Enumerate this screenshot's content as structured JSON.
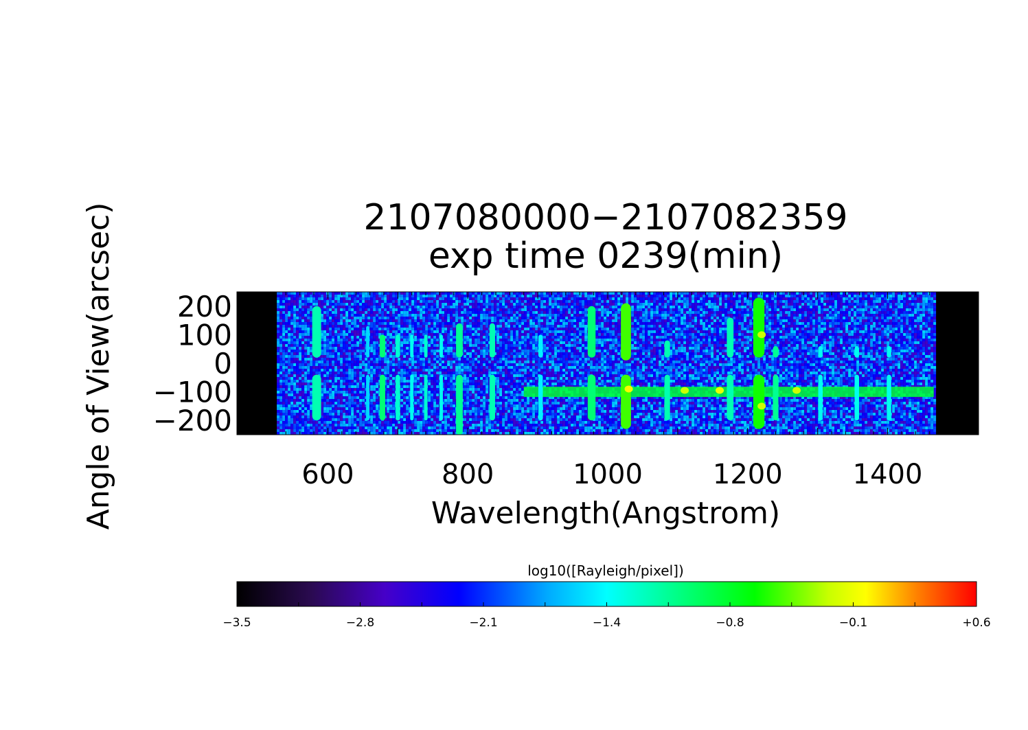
{
  "chart_data": {
    "type": "heatmap",
    "title_lines": [
      "2107080000−2107082359",
      "exp time 0239(min)"
    ],
    "xlabel": "Wavelength(Angstrom)",
    "ylabel": "Angle of View(arcsec)",
    "xlim": [
      470,
      1530
    ],
    "ylim": [
      -250,
      250
    ],
    "detector_range": [
      527,
      1466
    ],
    "x_ticks": [
      600,
      800,
      1000,
      1200,
      1400
    ],
    "x_tick_labels": [
      "600",
      "800",
      "1000",
      "1200",
      "1400"
    ],
    "y_ticks": [
      200,
      100,
      0,
      -100,
      -200
    ],
    "y_tick_labels": [
      "200",
      "100",
      "0",
      "−100",
      "−200"
    ],
    "colorbar": {
      "label": "log10([Rayleigh/pixel])",
      "range": [
        -3.5,
        0.6
      ],
      "tick_values": [
        -3.5,
        -2.8,
        -2.1,
        -1.4,
        -0.8,
        -0.1,
        0.6
      ],
      "tick_labels": [
        "−3.5",
        "−2.8",
        "−2.1",
        "−1.4",
        "−0.8",
        "−0.1",
        "+0.6"
      ]
    },
    "background_level": -2.1,
    "emission_lines": [
      {
        "wavelength": 584,
        "peak": -1.2,
        "width": 8,
        "vertical_extent": [
          -200,
          200
        ],
        "gap": [
          -40,
          20
        ]
      },
      {
        "wavelength": 657,
        "peak": -1.6,
        "width": 3,
        "vertical_extent": [
          -200,
          130
        ],
        "gap": [
          -40,
          20
        ]
      },
      {
        "wavelength": 678,
        "peak": -1.0,
        "width": 5,
        "vertical_extent": [
          -200,
          100
        ],
        "gap": [
          -40,
          20
        ]
      },
      {
        "wavelength": 700,
        "peak": -1.3,
        "width": 4,
        "vertical_extent": [
          -200,
          100
        ],
        "gap": [
          -40,
          20
        ]
      },
      {
        "wavelength": 720,
        "peak": -1.4,
        "width": 3,
        "vertical_extent": [
          -200,
          100
        ],
        "gap": [
          -40,
          20
        ]
      },
      {
        "wavelength": 740,
        "peak": -1.3,
        "width": 3,
        "vertical_extent": [
          -200,
          100
        ],
        "gap": [
          -40,
          20
        ]
      },
      {
        "wavelength": 762,
        "peak": -1.4,
        "width": 3,
        "vertical_extent": [
          -200,
          100
        ],
        "gap": [
          -40,
          20
        ]
      },
      {
        "wavelength": 788,
        "peak": -1.1,
        "width": 6,
        "vertical_extent": [
          -250,
          140
        ],
        "gap": [
          -40,
          20
        ]
      },
      {
        "wavelength": 835,
        "peak": -1.2,
        "width": 5,
        "vertical_extent": [
          -200,
          140
        ],
        "gap": [
          -40,
          20
        ]
      },
      {
        "wavelength": 904,
        "peak": -1.5,
        "width": 4,
        "vertical_extent": [
          -200,
          100
        ],
        "gap": [
          -40,
          20
        ]
      },
      {
        "wavelength": 977,
        "peak": -1.0,
        "width": 7,
        "vertical_extent": [
          -200,
          200
        ],
        "gap": [
          -40,
          20
        ]
      },
      {
        "wavelength": 1026,
        "peak": -0.5,
        "width": 9,
        "vertical_extent": [
          -230,
          210
        ],
        "gap": [
          -40,
          10
        ]
      },
      {
        "wavelength": 1085,
        "peak": -1.2,
        "width": 5,
        "vertical_extent": [
          -200,
          80
        ],
        "gap": [
          -40,
          20
        ]
      },
      {
        "wavelength": 1175,
        "peak": -1.2,
        "width": 6,
        "vertical_extent": [
          -200,
          160
        ],
        "gap": [
          -40,
          20
        ]
      },
      {
        "wavelength": 1216,
        "peak": -0.6,
        "width": 10,
        "vertical_extent": [
          -230,
          230
        ],
        "gap": [
          -40,
          20
        ]
      },
      {
        "wavelength": 1240,
        "peak": -1.1,
        "width": 5,
        "vertical_extent": [
          -200,
          60
        ],
        "gap": [
          -40,
          20
        ]
      },
      {
        "wavelength": 1304,
        "peak": -1.4,
        "width": 4,
        "vertical_extent": [
          -200,
          60
        ],
        "gap": [
          -40,
          20
        ]
      },
      {
        "wavelength": 1356,
        "peak": -1.4,
        "width": 4,
        "vertical_extent": [
          -200,
          60
        ],
        "gap": [
          -40,
          20
        ]
      },
      {
        "wavelength": 1402,
        "peak": -1.4,
        "width": 4,
        "vertical_extent": [
          -200,
          60
        ],
        "gap": [
          -40,
          20
        ]
      }
    ],
    "continuum_band": {
      "angle": -100,
      "from_wavelength": 880,
      "to_wavelength": 1466,
      "level": -0.8
    },
    "bright_spots": [
      {
        "wavelength": 1030,
        "angle": -90,
        "level": 0.0
      },
      {
        "wavelength": 1110,
        "angle": -95,
        "level": -0.2
      },
      {
        "wavelength": 1160,
        "angle": -95,
        "level": -0.1
      },
      {
        "wavelength": 1270,
        "angle": -95,
        "level": -0.2
      },
      {
        "wavelength": 1220,
        "angle": 100,
        "level": -0.2
      },
      {
        "wavelength": 1220,
        "angle": -150,
        "level": -0.2
      }
    ]
  }
}
